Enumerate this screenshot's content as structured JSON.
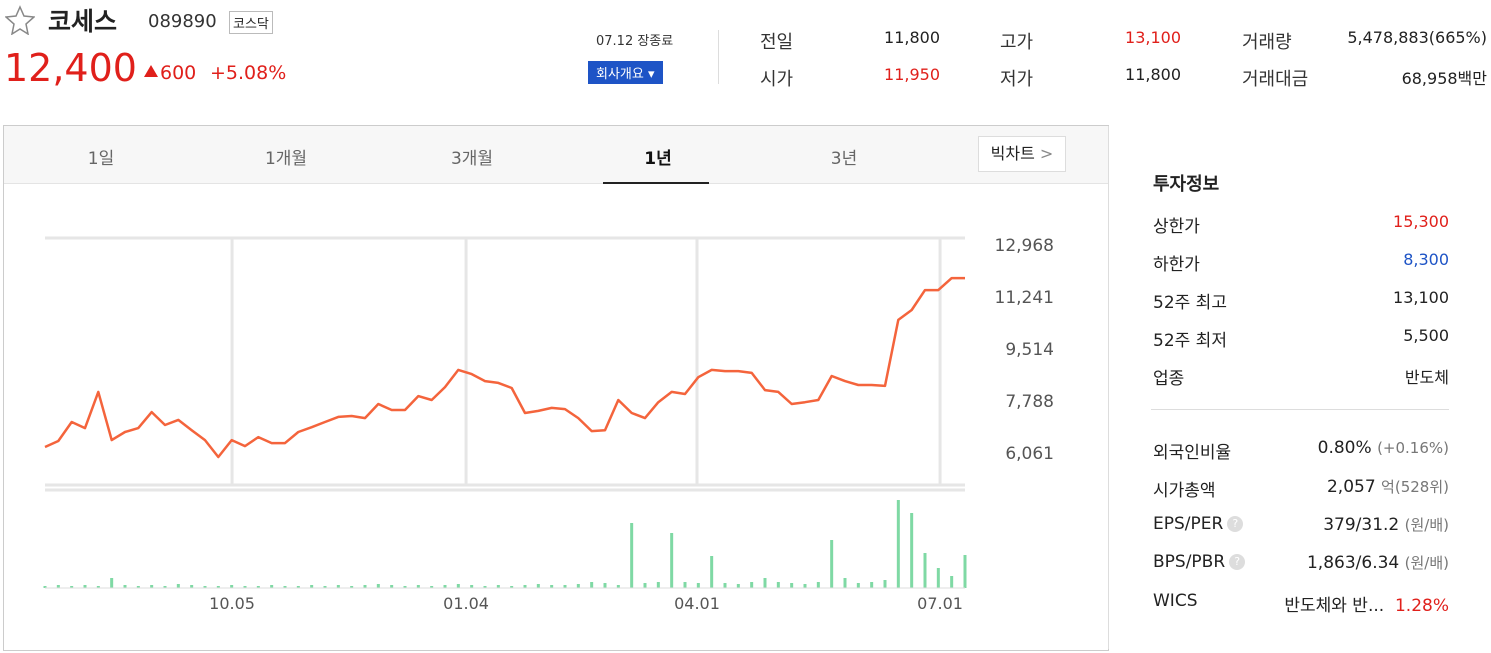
{
  "header": {
    "name": "코세스",
    "code": "089890",
    "market": "코스닥",
    "price": "12,400",
    "change": "600",
    "change_pct": "+5.08%",
    "status": "07.12 장종료",
    "company_button": "회사개요"
  },
  "quotes": [
    {
      "label": "전일",
      "value": "11,800",
      "color": "#222222"
    },
    {
      "label": "시가",
      "value": "11,950",
      "color": "#e0201b"
    },
    {
      "label": "고가",
      "value": "13,100",
      "color": "#e0201b"
    },
    {
      "label": "저가",
      "value": "11,800",
      "color": "#222222"
    },
    {
      "label": "거래량",
      "value": "5,478,883(665%)",
      "color": "#222222"
    },
    {
      "label": "거래대금",
      "value": "68,958백만",
      "color": "#222222"
    }
  ],
  "tabs": {
    "items": [
      "1일",
      "1개월",
      "3개월",
      "1년",
      "3년"
    ],
    "active": 3,
    "big_chart": "빅차트"
  },
  "chart_data": {
    "type": "line",
    "color": "#f4643c",
    "volume_color": "#7fd9a4",
    "values": [
      6260,
      6460,
      7090,
      6890,
      8090,
      6490,
      6760,
      6890,
      7420,
      6990,
      7160,
      6820,
      6490,
      5930,
      6490,
      6290,
      6590,
      6390,
      6390,
      6760,
      6920,
      7090,
      7260,
      7290,
      7220,
      7690,
      7490,
      7490,
      7950,
      7820,
      8250,
      8820,
      8680,
      8450,
      8390,
      8220,
      7390,
      7460,
      7560,
      7520,
      7220,
      6790,
      6820,
      7820,
      7390,
      7220,
      7750,
      8090,
      8020,
      8580,
      8820,
      8780,
      8780,
      8720,
      8150,
      8090,
      7690,
      7750,
      7820,
      8620,
      8450,
      8320,
      8320,
      8290,
      10480,
      10810,
      11470,
      11470,
      11870,
      11870
    ],
    "volume": [
      2,
      3,
      2,
      3,
      2,
      10,
      3,
      2,
      3,
      2,
      4,
      3,
      2,
      2,
      3,
      2,
      2,
      3,
      2,
      2,
      3,
      2,
      3,
      2,
      3,
      4,
      3,
      2,
      3,
      2,
      3,
      4,
      3,
      2,
      3,
      2,
      3,
      4,
      3,
      3,
      4,
      6,
      5,
      3,
      65,
      5,
      6,
      55,
      6,
      5,
      32,
      5,
      4,
      6,
      10,
      6,
      5,
      4,
      6,
      48,
      10,
      5,
      6,
      8,
      88,
      75,
      35,
      20,
      12,
      33
    ],
    "ylim": [
      4900,
      13200
    ],
    "y2lim": [
      0,
      90
    ],
    "yticks": [
      {
        "value": 12968,
        "label": "12,968"
      },
      {
        "value": 11241,
        "label": "11,241"
      },
      {
        "value": 9514,
        "label": "9,514"
      },
      {
        "value": 7788,
        "label": "7,788"
      },
      {
        "value": 6061,
        "label": "6,061"
      }
    ],
    "xticks": [
      {
        "value": 14.03,
        "label": "10.05"
      },
      {
        "value": 31.58,
        "label": "01.04"
      },
      {
        "value": 48.9,
        "label": "04.01"
      },
      {
        "value": 67.13,
        "label": "07.01"
      }
    ]
  },
  "info": {
    "title": "투자정보",
    "rows1": [
      {
        "label": "상한가",
        "value": "15,300",
        "color": "#e0201b"
      },
      {
        "label": "하한가",
        "value": "8,300",
        "color": "#1e54c6"
      },
      {
        "label": "52주 최고",
        "value": "13,100",
        "color": "#222222"
      },
      {
        "label": "52주 최저",
        "value": "5,500",
        "color": "#222222"
      },
      {
        "label": "업종",
        "value": "반도체",
        "color": "#222222"
      }
    ],
    "foreign": {
      "label": "외국인비율",
      "value": "0.80%",
      "sub": "(+0.16%)"
    },
    "cap": {
      "label": "시가총액",
      "value": "2,057",
      "unit": "억",
      "sub": "(528위)"
    },
    "eps": {
      "label": "EPS/PER",
      "value": "379/31.2",
      "sub": "(원/배)"
    },
    "bps": {
      "label": "BPS/PBR",
      "value": "1,863/6.34",
      "sub": "(원/배)"
    },
    "wics": {
      "label": "WICS",
      "value": "반도체와 반...",
      "pct": "1.28%"
    }
  }
}
